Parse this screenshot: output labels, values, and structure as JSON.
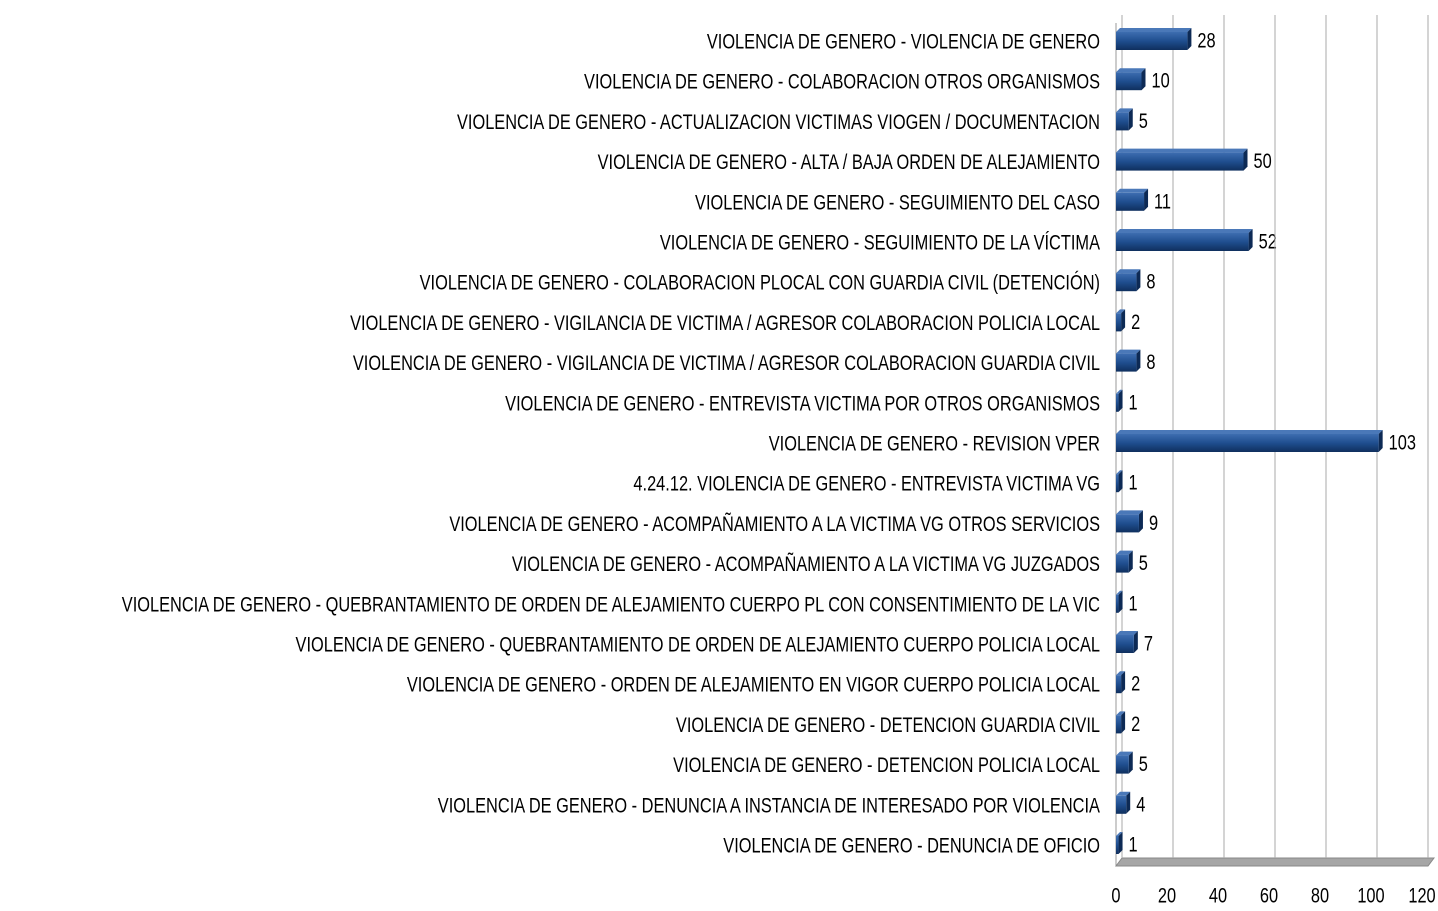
{
  "chart_data": {
    "type": "bar",
    "orientation": "horizontal",
    "categories": [
      "VIOLENCIA DE GENERO - VIOLENCIA DE GENERO",
      "VIOLENCIA DE GENERO - COLABORACION OTROS ORGANISMOS",
      "VIOLENCIA DE GENERO - ACTUALIZACION VICTIMAS VIOGEN / DOCUMENTACION",
      "VIOLENCIA DE GENERO - ALTA / BAJA ORDEN DE ALEJAMIENTO",
      "VIOLENCIA DE GENERO - SEGUIMIENTO DEL CASO",
      "VIOLENCIA DE GENERO - SEGUIMIENTO DE LA VÍCTIMA",
      "VIOLENCIA DE GENERO - COLABORACION PLOCAL CON GUARDIA CIVIL (DETENCIÓN)",
      "VIOLENCIA DE GENERO - VIGILANCIA DE VICTIMA / AGRESOR COLABORACION POLICIA LOCAL",
      "VIOLENCIA DE GENERO - VIGILANCIA DE VICTIMA / AGRESOR COLABORACION GUARDIA CIVIL",
      "VIOLENCIA DE GENERO - ENTREVISTA VICTIMA POR OTROS ORGANISMOS",
      "VIOLENCIA DE GENERO - REVISION VPER",
      "4.24.12. VIOLENCIA DE GENERO - ENTREVISTA VICTIMA VG",
      "VIOLENCIA DE GENERO - ACOMPAÑAMIENTO A LA VICTIMA VG OTROS SERVICIOS",
      "VIOLENCIA DE GENERO - ACOMPAÑAMIENTO A LA VICTIMA VG JUZGADOS",
      "VIOLENCIA DE GENERO - QUEBRANTAMIENTO DE ORDEN DE ALEJAMIENTO CUERPO PL CON CONSENTIMIENTO DE LA VIC",
      "VIOLENCIA DE GENERO - QUEBRANTAMIENTO DE ORDEN DE ALEJAMIENTO CUERPO POLICIA LOCAL",
      "VIOLENCIA DE GENERO - ORDEN DE ALEJAMIENTO EN VIGOR CUERPO POLICIA LOCAL",
      "VIOLENCIA DE GENERO - DETENCION GUARDIA CIVIL",
      "VIOLENCIA DE GENERO - DETENCION POLICIA LOCAL",
      "VIOLENCIA DE GENERO - DENUNCIA A INSTANCIA DE INTERESADO POR VIOLENCIA",
      "VIOLENCIA DE GENERO - DENUNCIA DE OFICIO"
    ],
    "values": [
      28,
      10,
      5,
      50,
      11,
      52,
      8,
      2,
      8,
      1,
      103,
      1,
      9,
      5,
      1,
      7,
      2,
      2,
      5,
      4,
      1
    ],
    "color": "#1f4e8f",
    "xlim": [
      0,
      120
    ],
    "xticks": [
      0,
      20,
      40,
      60,
      80,
      100,
      120
    ],
    "grid": true
  }
}
